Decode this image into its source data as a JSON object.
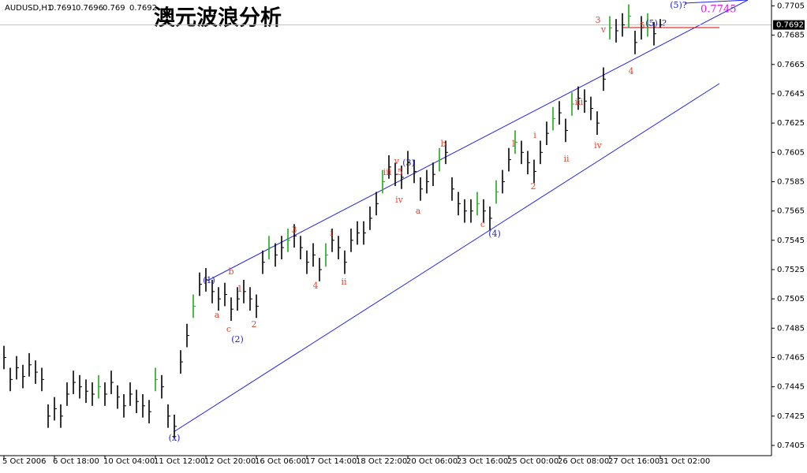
{
  "chart_data": {
    "type": "ohlc",
    "title": "澳元波浪分析",
    "symbol": "AUDUSD,H1",
    "header_ohlc": [
      0.7691,
      0.7696,
      0.769,
      0.7692
    ],
    "price_highlight": "0.7745",
    "categories": [
      "5 Oct 2006",
      null,
      null,
      null,
      null,
      null,
      null,
      null,
      "6 Oct 18:00",
      null,
      null,
      null,
      null,
      null,
      null,
      null,
      "10 Oct 04:00",
      null,
      null,
      null,
      null,
      null,
      null,
      null,
      "11 Oct 12:00",
      null,
      null,
      null,
      null,
      null,
      null,
      null,
      "12 Oct 20:00",
      null,
      null,
      null,
      null,
      null,
      null,
      null,
      "16 Oct 06:00",
      null,
      null,
      null,
      null,
      null,
      null,
      null,
      "17 Oct 14:00",
      null,
      null,
      null,
      null,
      null,
      null,
      null,
      "18 Oct 22:00",
      null,
      null,
      null,
      null,
      null,
      null,
      null,
      "20 Oct 06:00",
      null,
      null,
      null,
      null,
      null,
      null,
      null,
      "23 Oct 16:00",
      null,
      null,
      null,
      null,
      null,
      null,
      null,
      "25 Oct 00:00",
      null,
      null,
      null,
      null,
      null,
      null,
      null,
      "26 Oct 08:00",
      null,
      null,
      null,
      null,
      null,
      null,
      null,
      "27 Oct 16:00",
      null,
      null,
      null,
      null,
      null,
      null,
      null,
      "31 Oct 02:00"
    ],
    "high": [
      0.7473,
      0.7458,
      0.7466,
      0.746,
      0.7468,
      0.7463,
      0.7458,
      0.7433,
      0.7438,
      0.7433,
      0.7448,
      0.7456,
      0.7453,
      0.745,
      0.7448,
      0.7453,
      0.7448,
      0.7456,
      0.7446,
      0.744,
      0.7448,
      0.7443,
      0.744,
      0.7436,
      0.7458,
      0.7453,
      0.7433,
      0.7426,
      0.747,
      0.7488,
      0.7508,
      0.7523,
      0.7526,
      0.7518,
      0.7513,
      0.7516,
      0.7506,
      0.7513,
      0.7518,
      0.7513,
      0.7508,
      0.7538,
      0.7548,
      0.7543,
      0.7548,
      0.7553,
      0.7556,
      0.7548,
      0.7538,
      0.7543,
      0.7533,
      0.7543,
      0.7553,
      0.7548,
      0.7538,
      0.7553,
      0.7558,
      0.7558,
      0.7568,
      0.7578,
      0.7593,
      0.7603,
      0.7598,
      0.7596,
      0.7606,
      0.76,
      0.7588,
      0.7593,
      0.7598,
      0.7608,
      0.7613,
      0.7588,
      0.7578,
      0.7573,
      0.7573,
      0.7578,
      0.7573,
      0.7568,
      0.7586,
      0.7593,
      0.7608,
      0.762,
      0.7613,
      0.7606,
      0.76,
      0.7613,
      0.7626,
      0.7636,
      0.764,
      0.7628,
      0.7646,
      0.765,
      0.7648,
      0.7643,
      0.7633,
      0.7663,
      0.7698,
      0.7696,
      0.77,
      0.7706,
      0.7688,
      0.7698,
      0.77,
      0.7694,
      0.7696
    ],
    "low": [
      0.7457,
      0.7442,
      0.745,
      0.7444,
      0.7452,
      0.7447,
      0.7442,
      0.7417,
      0.7422,
      0.7417,
      0.7432,
      0.744,
      0.7437,
      0.7434,
      0.7432,
      0.7437,
      0.7432,
      0.744,
      0.743,
      0.7424,
      0.7432,
      0.7427,
      0.7424,
      0.742,
      0.7442,
      0.7437,
      0.7417,
      0.741,
      0.7454,
      0.7472,
      0.7492,
      0.7507,
      0.751,
      0.7502,
      0.7497,
      0.75,
      0.749,
      0.7497,
      0.7502,
      0.7497,
      0.7492,
      0.7522,
      0.7532,
      0.7527,
      0.7532,
      0.7537,
      0.754,
      0.7532,
      0.7522,
      0.7527,
      0.7517,
      0.7527,
      0.7537,
      0.7532,
      0.7522,
      0.7537,
      0.7542,
      0.7542,
      0.7552,
      0.7562,
      0.7577,
      0.7587,
      0.7582,
      0.758,
      0.759,
      0.7584,
      0.7572,
      0.7577,
      0.7582,
      0.7592,
      0.7597,
      0.7572,
      0.7562,
      0.7557,
      0.7557,
      0.7562,
      0.7557,
      0.7552,
      0.757,
      0.7577,
      0.7592,
      0.7604,
      0.7597,
      0.759,
      0.7584,
      0.7597,
      0.761,
      0.762,
      0.7624,
      0.7612,
      0.763,
      0.7634,
      0.7632,
      0.7627,
      0.7617,
      0.7647,
      0.7682,
      0.768,
      0.7684,
      0.769,
      0.7672,
      0.7682,
      0.7684,
      0.7678,
      0.769
    ],
    "close": [
      0.7465,
      0.745,
      0.7458,
      0.7452,
      0.746,
      0.7455,
      0.745,
      0.7425,
      0.743,
      0.7425,
      0.744,
      0.7448,
      0.7445,
      0.7442,
      0.744,
      0.7445,
      0.744,
      0.7448,
      0.7438,
      0.7432,
      0.744,
      0.7435,
      0.7432,
      0.7428,
      0.745,
      0.7445,
      0.7425,
      0.7418,
      0.7462,
      0.748,
      0.75,
      0.7515,
      0.7518,
      0.751,
      0.7505,
      0.7508,
      0.7498,
      0.7505,
      0.751,
      0.7505,
      0.75,
      0.753,
      0.754,
      0.7535,
      0.754,
      0.7545,
      0.7548,
      0.754,
      0.753,
      0.7535,
      0.7525,
      0.7535,
      0.7545,
      0.754,
      0.753,
      0.7545,
      0.755,
      0.755,
      0.756,
      0.757,
      0.7585,
      0.7595,
      0.759,
      0.7588,
      0.7598,
      0.7592,
      0.758,
      0.7585,
      0.759,
      0.76,
      0.7605,
      0.758,
      0.757,
      0.7565,
      0.7565,
      0.757,
      0.7565,
      0.756,
      0.7578,
      0.7585,
      0.76,
      0.7612,
      0.7605,
      0.7598,
      0.7592,
      0.7605,
      0.7618,
      0.7628,
      0.7632,
      0.762,
      0.7638,
      0.7642,
      0.764,
      0.7635,
      0.7625,
      0.7655,
      0.769,
      0.7688,
      0.7692,
      0.7698,
      0.768,
      0.769,
      0.7692,
      0.7686,
      0.7692
    ],
    "color": "#000000",
    "channel_color": "#2323e6",
    "ylim": [
      0.7398,
      0.7709
    ],
    "yticks": [
      0.7405,
      0.7425,
      0.7445,
      0.7465,
      0.7485,
      0.7505,
      0.7525,
      0.7545,
      0.7565,
      0.7585,
      0.7605,
      0.7625,
      0.7645,
      0.7665,
      0.7685,
      0.7705
    ],
    "annotations": [
      {
        "text": "(1)",
        "color": "#1c1cd6"
      },
      {
        "text": "a",
        "color": "#e8452f"
      },
      {
        "text": "b",
        "color": "#e8452f"
      },
      {
        "text": "c",
        "color": "#e8452f"
      },
      {
        "text": "(2)",
        "color": "#1c1cd6"
      },
      {
        "text": "1",
        "color": "#e8452f"
      },
      {
        "text": "2",
        "color": "#e8452f"
      },
      {
        "text": "3",
        "color": "#e8452f"
      },
      {
        "text": "4",
        "color": "#e8452f"
      },
      {
        "text": "i",
        "color": "#e8452f"
      },
      {
        "text": "ii",
        "color": "#e8452f"
      },
      {
        "text": "iii",
        "color": "#e8452f"
      },
      {
        "text": "5",
        "color": "#e8452f"
      },
      {
        "text": "v",
        "color": "#e8452f"
      },
      {
        "text": "(3)",
        "color": "#1c1cd6"
      },
      {
        "text": "iv",
        "color": "#e8452f"
      },
      {
        "text": "a",
        "color": "#e8452f"
      },
      {
        "text": "b",
        "color": "#e8452f"
      },
      {
        "text": "c",
        "color": "#e8452f"
      },
      {
        "text": "(4)",
        "color": "#1c1cd6"
      },
      {
        "text": "1",
        "color": "#e8452f"
      },
      {
        "text": "i",
        "color": "#e8452f"
      },
      {
        "text": "2",
        "color": "#e8452f"
      },
      {
        "text": "ii",
        "color": "#e8452f"
      },
      {
        "text": "iii",
        "color": "#e8452f"
      },
      {
        "text": "iv",
        "color": "#e8452f"
      },
      {
        "text": "3",
        "color": "#e8452f"
      },
      {
        "text": "v",
        "color": "#e8452f"
      },
      {
        "text": "4",
        "color": "#e8452f"
      },
      {
        "text": "5",
        "color": "#e8452f"
      },
      {
        "text": "(5)",
        "color": "#1c1cd6"
      },
      {
        "text": "?",
        "color": "#1c1cd6"
      },
      {
        "text": "(x)",
        "color": "#1c1cd6"
      },
      {
        "text": "(5)?",
        "color": "#1c1cd6"
      }
    ]
  }
}
